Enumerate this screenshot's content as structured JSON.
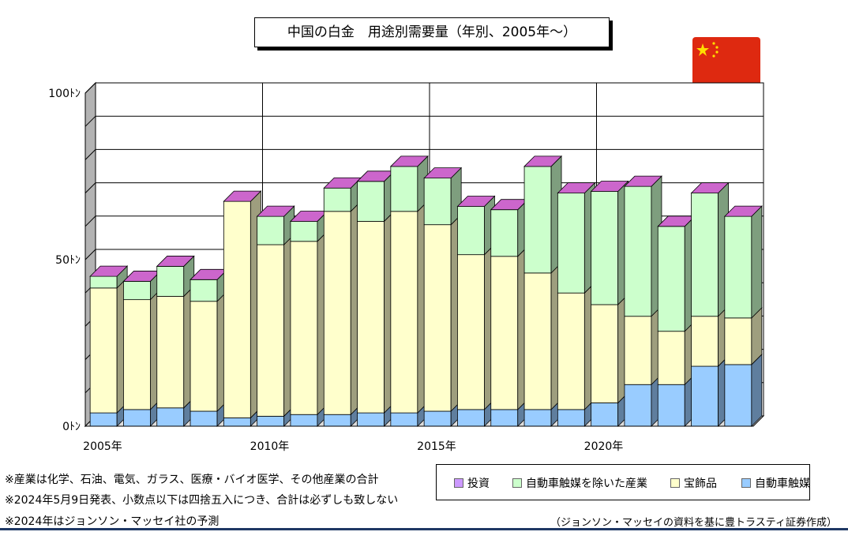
{
  "title": "中国の白金　用途別需要量（年別、2005年～）",
  "flag": {
    "name": "china-flag",
    "color": "#de2910",
    "star_color": "#ffde00"
  },
  "chart_data": {
    "type": "bar",
    "stacked": true,
    "three_d": true,
    "categories": [
      "2005",
      "2006",
      "2007",
      "2008",
      "2009",
      "2010",
      "2011",
      "2012",
      "2013",
      "2014",
      "2015",
      "2016",
      "2017",
      "2018",
      "2019",
      "2020",
      "2021",
      "2022",
      "2023",
      "2024"
    ],
    "series": [
      {
        "name": "自動車触媒",
        "color": "#99ccff",
        "values": [
          4,
          5,
          5.5,
          4.5,
          2.5,
          3,
          3.5,
          3.5,
          4,
          4,
          4.5,
          5,
          5,
          5,
          5,
          7,
          12.5,
          12.5,
          18,
          18.5
        ]
      },
      {
        "name": "宝飾品",
        "color": "#ffffcc",
        "values": [
          37.5,
          33,
          33.5,
          33,
          65,
          51.5,
          52,
          61,
          57.5,
          60.5,
          56,
          46.5,
          46,
          41,
          35,
          29.5,
          20.5,
          16,
          15,
          14
        ]
      },
      {
        "name": "自動車触媒を除いた産業",
        "color": "#ccffcc",
        "values": [
          3.5,
          5.5,
          9,
          6.5,
          0,
          8.5,
          6,
          7,
          12,
          13.5,
          14,
          14.5,
          14,
          32,
          30,
          34,
          39,
          31.5,
          37,
          30.5
        ]
      },
      {
        "name": "投資",
        "color": "#cc99ff",
        "values": [
          0,
          0,
          0,
          0,
          0,
          0,
          0,
          0,
          0,
          0,
          0,
          0,
          0,
          0,
          0,
          0,
          0,
          0,
          0,
          0
        ]
      }
    ],
    "ylim": [
      0,
      100
    ],
    "y_tick_labels": [
      "0ﾄﾝ",
      "50ﾄﾝ",
      "100ﾄﾝ"
    ],
    "y_tick_values": [
      0,
      50,
      100
    ],
    "x_tick_labels": [
      "2005年",
      "2010年",
      "2015年",
      "2020年"
    ],
    "x_tick_categories": [
      "2005",
      "2010",
      "2015",
      "2020"
    ],
    "grid": true,
    "legend": "bottom-right"
  },
  "legend_items": [
    "投資",
    "自動車触媒を除いた産業",
    "宝飾品",
    "自動車触媒"
  ],
  "notes": [
    "※産業は化学、石油、電気、ガラス、医療・バイオ医学、その他産業の合計",
    "※2024年5月9日発表、小数点以下は四捨五入につき、合計は必ずしも致しない",
    "※2024年はジョンソン・マッセイ社の予測"
  ],
  "source": "（ジョンソン・マッセイの資料を基に豊トラスティ証券作成）"
}
